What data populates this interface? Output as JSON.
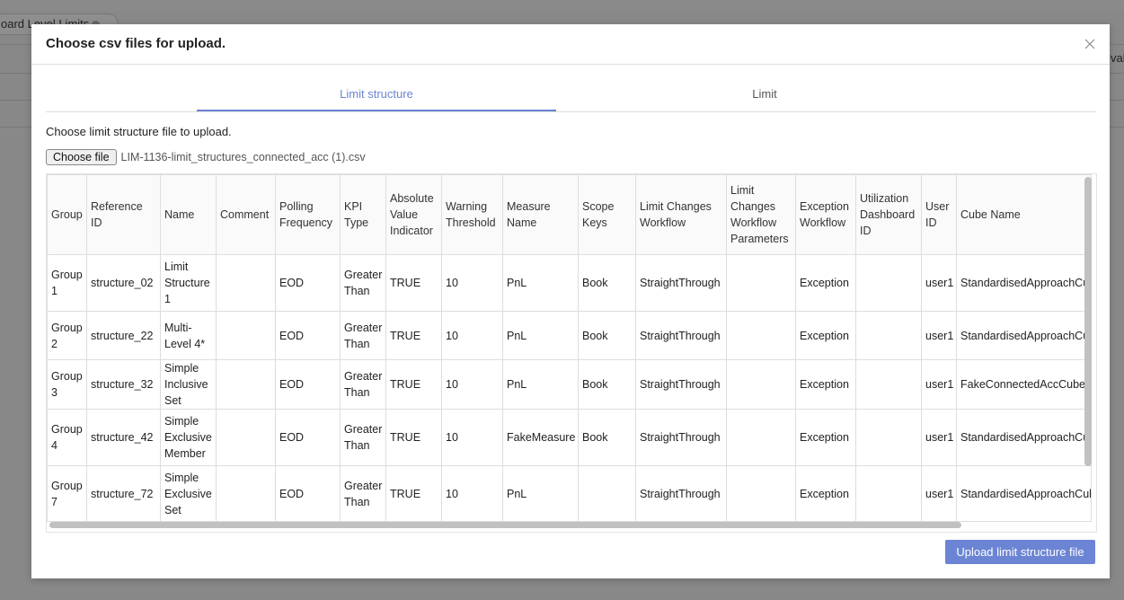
{
  "background": {
    "tab_label": "oard Level Limits",
    "right_text": "val"
  },
  "modal": {
    "title": "Choose csv files for upload.",
    "tabs": [
      {
        "label": "Limit structure",
        "active": true
      },
      {
        "label": "Limit",
        "active": false
      }
    ],
    "description": "Choose limit structure file to upload.",
    "file_button": "Choose file",
    "file_name": "LIM-1136-limit_structures_connected_acc (1).csv",
    "upload_button": "Upload limit structure file",
    "accent_color": "#6b84d4"
  },
  "table": {
    "columns": [
      "Group",
      "Reference ID",
      "Name",
      "Comment",
      "Polling Frequency",
      "KPI Type",
      "Absolute Value Indicator",
      "Warning Threshold",
      "Measure Name",
      "Scope Keys",
      "Limit Changes Workflow",
      "Limit Changes Workflow Parameters",
      "Exception Workflow",
      "Utilization Dashboard ID",
      "User ID",
      "Cube Name"
    ],
    "rows": [
      [
        "Group 1",
        "structure_02",
        "Limit Structure 1",
        "",
        "EOD",
        "Greater Than",
        "TRUE",
        "10",
        "PnL",
        "Book",
        "StraightThrough",
        "",
        "Exception",
        "",
        "user1",
        "StandardisedApproachCube"
      ],
      [
        "Group 2",
        "structure_22",
        "Multi-Level 4*",
        "",
        "EOD",
        "Greater Than",
        "TRUE",
        "10",
        "PnL",
        "Book",
        "StraightThrough",
        "",
        "Exception",
        "",
        "user1",
        "StandardisedApproachCube"
      ],
      [
        "Group 3",
        "structure_32",
        "Simple Inclusive Set",
        "",
        "EOD",
        "Greater Than",
        "TRUE",
        "10",
        "PnL",
        "Book",
        "StraightThrough",
        "",
        "Exception",
        "",
        "user1",
        "FakeConnectedAccCube"
      ],
      [
        "Group 4",
        "structure_42",
        "Simple Exclusive Member",
        "",
        "EOD",
        "Greater Than",
        "TRUE",
        "10",
        "FakeMeasure",
        "Book",
        "StraightThrough",
        "",
        "Exception",
        "",
        "user1",
        "StandardisedApproachCube"
      ],
      [
        "Group 7",
        "structure_72",
        "Simple Exclusive Set",
        "",
        "EOD",
        "Greater Than",
        "TRUE",
        "10",
        "PnL",
        "",
        "StraightThrough",
        "",
        "Exception",
        "",
        "user1",
        "StandardisedApproachCube"
      ]
    ]
  }
}
